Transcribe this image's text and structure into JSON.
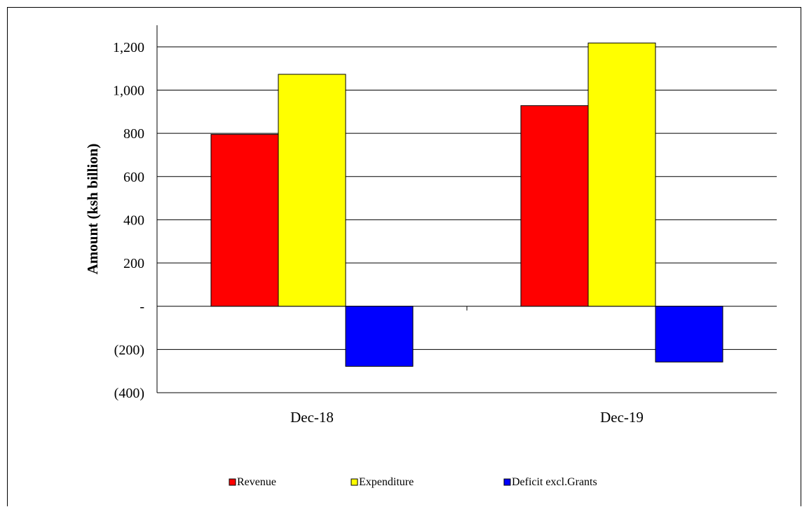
{
  "chart_data": {
    "type": "bar",
    "title": "",
    "xlabel": "",
    "ylabel": "Amount  (ksh billion)",
    "ylim": [
      -400,
      1300
    ],
    "yticks": [
      -400,
      -200,
      0,
      200,
      400,
      600,
      800,
      1000,
      1200
    ],
    "ytick_labels": [
      "(400)",
      "(200)",
      "-",
      "200",
      "400",
      "600",
      "800",
      "1,000",
      "1,200"
    ],
    "grid": true,
    "legend_position": "bottom",
    "categories": [
      "Dec-18",
      "Dec-19"
    ],
    "series": [
      {
        "name": "Revenue",
        "color": "#ff0000",
        "values": [
          795,
          928
        ]
      },
      {
        "name": "Expenditure",
        "color": "#ffff00",
        "values": [
          1073,
          1218
        ]
      },
      {
        "name": "Deficit excl.Grants",
        "color": "#0000ff",
        "values": [
          -278,
          -258
        ]
      }
    ]
  }
}
